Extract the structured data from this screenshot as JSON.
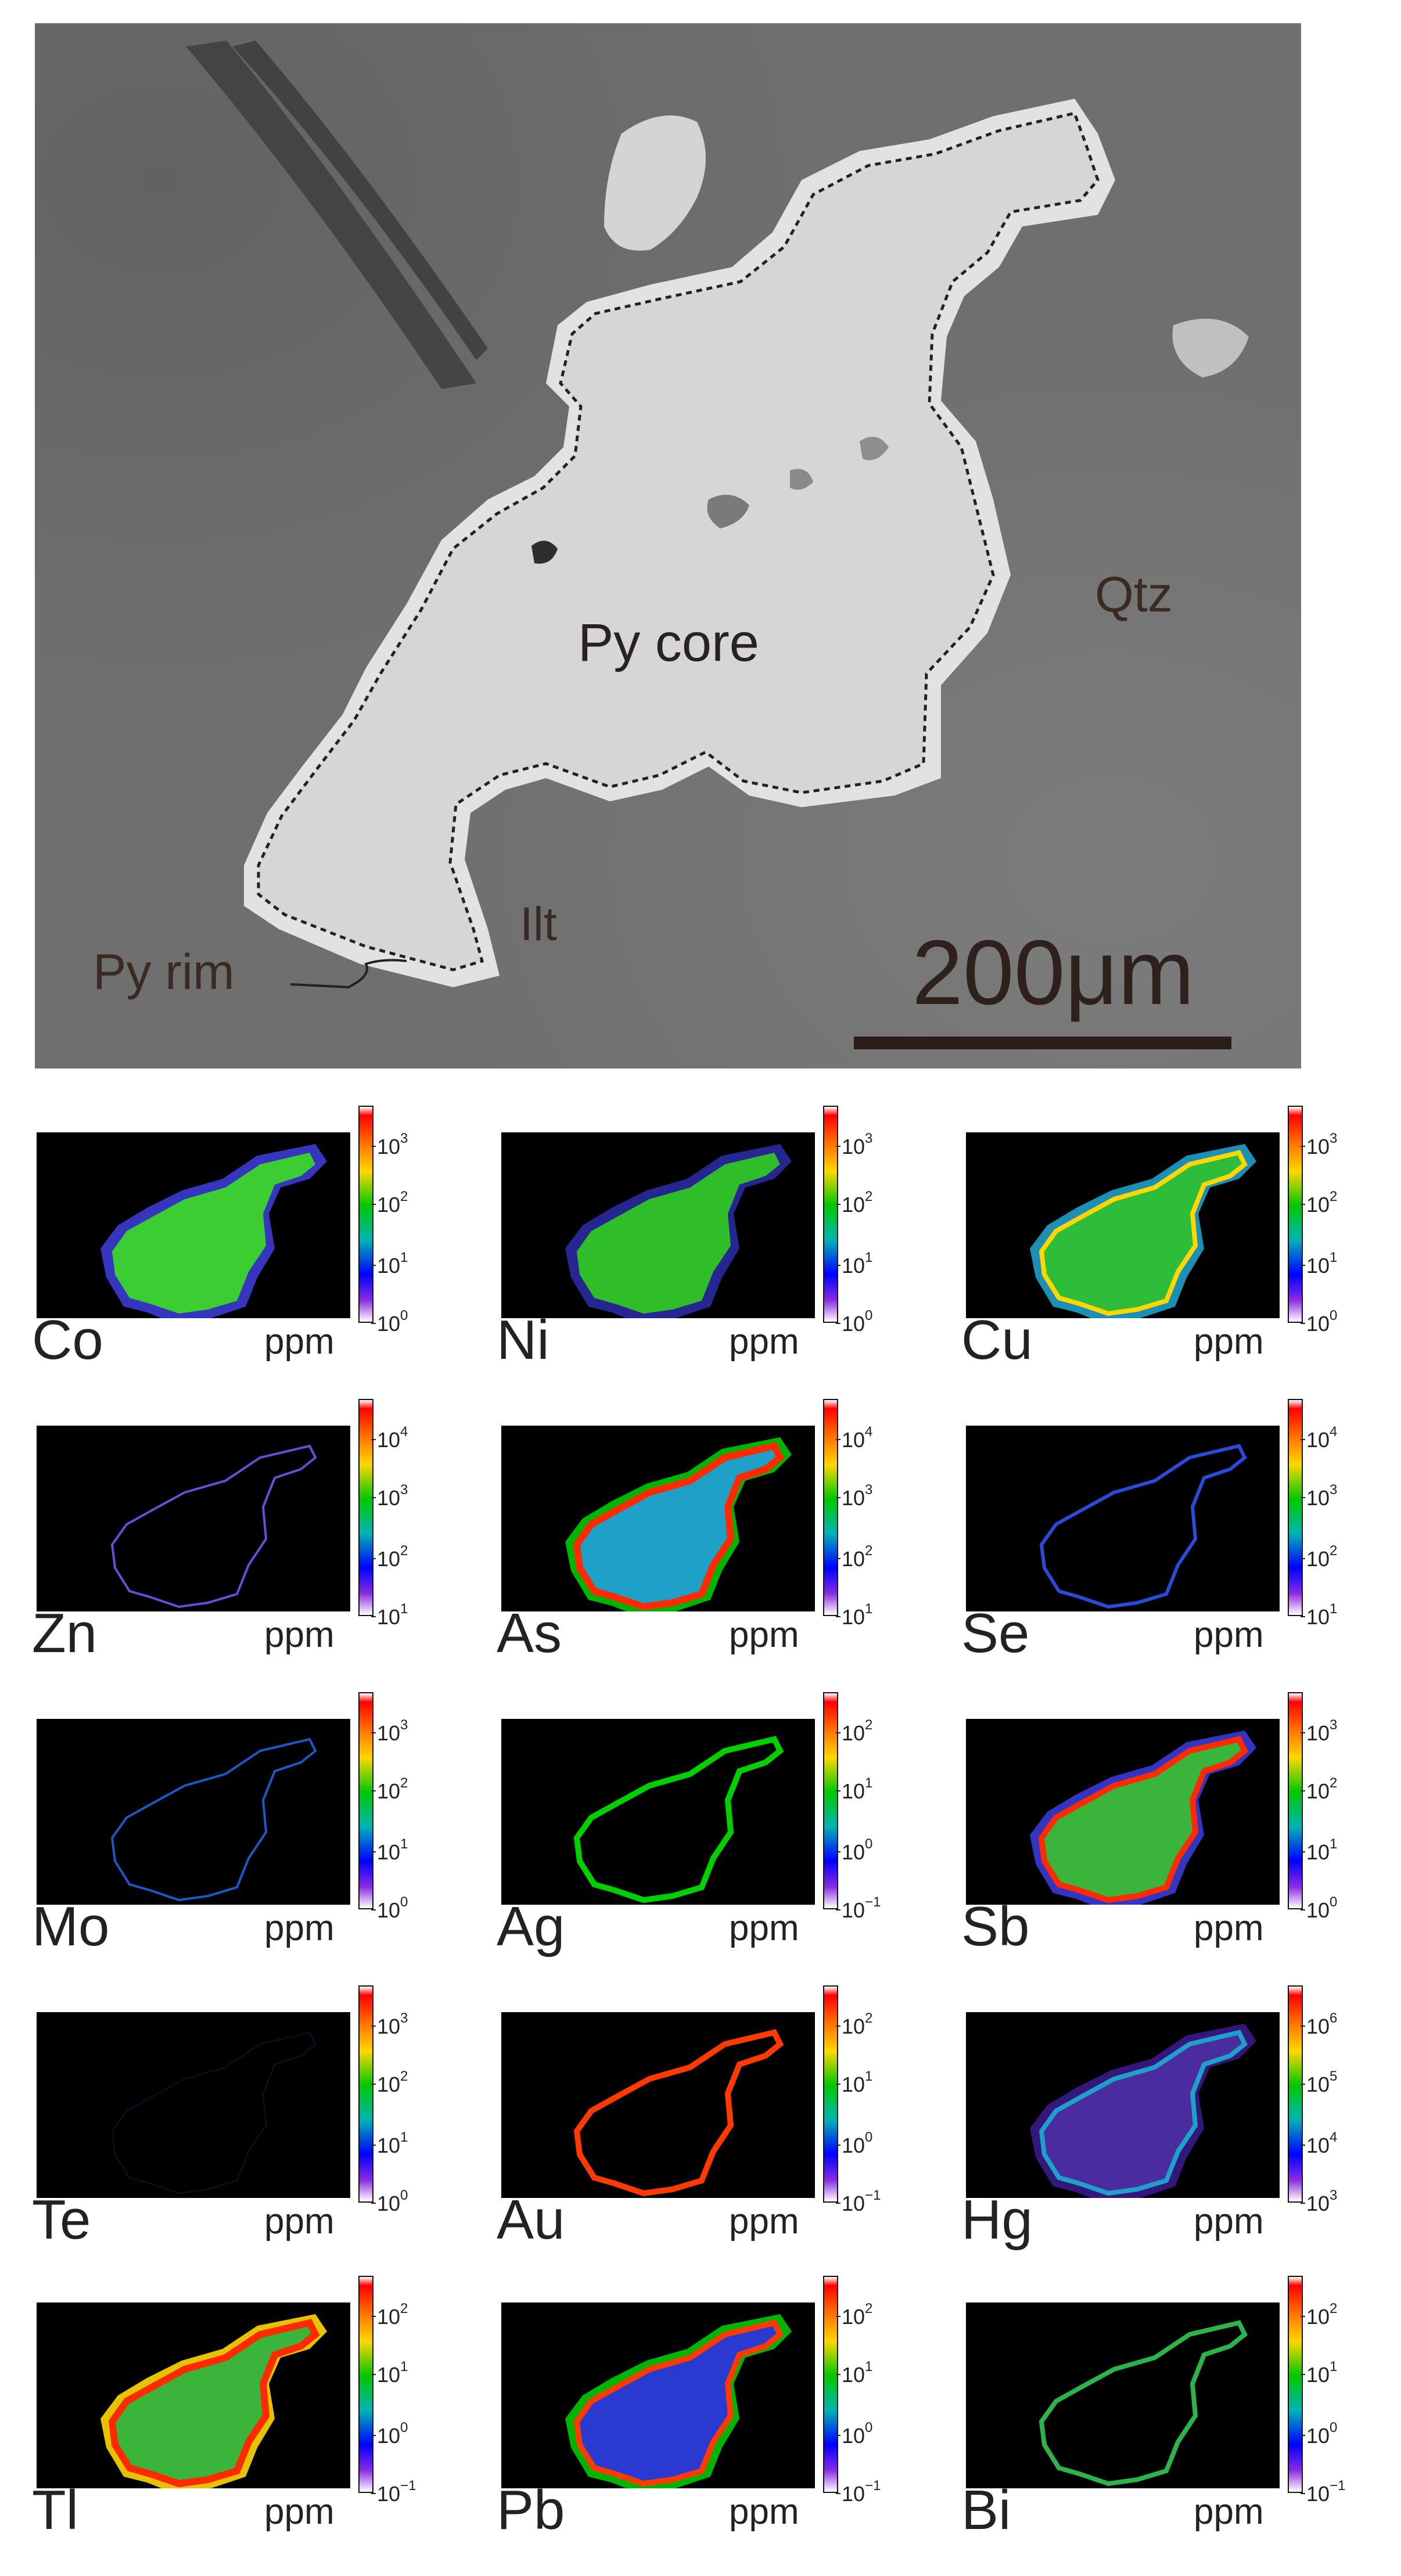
{
  "sem_image": {
    "labels": {
      "py_core": "Py core",
      "qtz": "Qtz",
      "ilt": "Ilt",
      "py_rim": "Py rim",
      "scale": "200μm"
    }
  },
  "unit_label": "ppm",
  "panels": [
    {
      "element": "Co",
      "ticks": [
        "10",
        "10",
        "10",
        "10"
      ],
      "exps": [
        "3",
        "2",
        "1",
        "0"
      ]
    },
    {
      "element": "Ni",
      "ticks": [
        "10",
        "10",
        "10",
        "10"
      ],
      "exps": [
        "3",
        "2",
        "1",
        "0"
      ]
    },
    {
      "element": "Cu",
      "ticks": [
        "10",
        "10",
        "10",
        "10"
      ],
      "exps": [
        "3",
        "2",
        "1",
        "0"
      ]
    },
    {
      "element": "Zn",
      "ticks": [
        "10",
        "10",
        "10",
        "10"
      ],
      "exps": [
        "4",
        "3",
        "2",
        "1"
      ]
    },
    {
      "element": "As",
      "ticks": [
        "10",
        "10",
        "10",
        "10"
      ],
      "exps": [
        "4",
        "3",
        "2",
        "1"
      ]
    },
    {
      "element": "Se",
      "ticks": [
        "10",
        "10",
        "10",
        "10"
      ],
      "exps": [
        "4",
        "3",
        "2",
        "1"
      ]
    },
    {
      "element": "Mo",
      "ticks": [
        "10",
        "10",
        "10",
        "10"
      ],
      "exps": [
        "3",
        "2",
        "1",
        "0"
      ]
    },
    {
      "element": "Ag",
      "ticks": [
        "10",
        "10",
        "10",
        "10"
      ],
      "exps": [
        "2",
        "1",
        "0",
        "−1"
      ]
    },
    {
      "element": "Sb",
      "ticks": [
        "10",
        "10",
        "10",
        "10"
      ],
      "exps": [
        "3",
        "2",
        "1",
        "0"
      ]
    },
    {
      "element": "Te",
      "ticks": [
        "10",
        "10",
        "10",
        "10"
      ],
      "exps": [
        "3",
        "2",
        "1",
        "0"
      ]
    },
    {
      "element": "Au",
      "ticks": [
        "10",
        "10",
        "10",
        "10"
      ],
      "exps": [
        "2",
        "1",
        "0",
        "−1"
      ]
    },
    {
      "element": "Hg",
      "ticks": [
        "10",
        "10",
        "10",
        "10"
      ],
      "exps": [
        "6",
        "5",
        "4",
        "3"
      ]
    },
    {
      "element": "Tl",
      "ticks": [
        "10",
        "10",
        "10",
        "10"
      ],
      "exps": [
        "2",
        "1",
        "0",
        "−1"
      ]
    },
    {
      "element": "Pb",
      "ticks": [
        "10",
        "10",
        "10",
        "10"
      ],
      "exps": [
        "2",
        "1",
        "0",
        "−1"
      ]
    },
    {
      "element": "Bi",
      "ticks": [
        "10",
        "10",
        "10",
        "10"
      ],
      "exps": [
        "2",
        "1",
        "0",
        "−1"
      ]
    }
  ]
}
